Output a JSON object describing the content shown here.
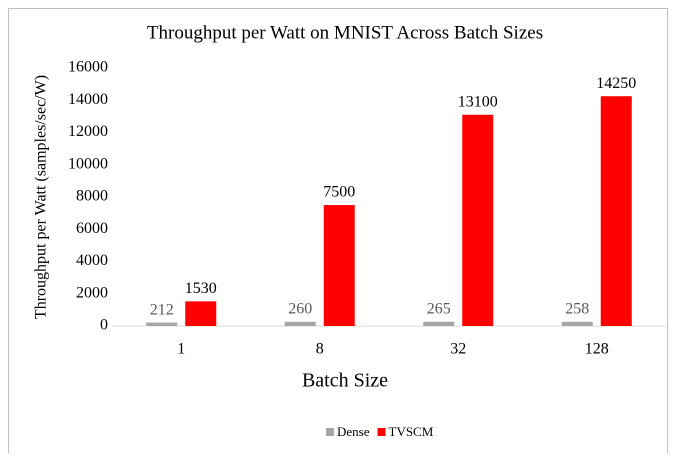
{
  "chart_data": {
    "type": "bar",
    "title": "Throughput per Watt on MNIST Across Batch Sizes",
    "x_label": "Batch Size",
    "y_label": "Throughput per Watt (samples/sec/W)",
    "categories": [
      "1",
      "8",
      "32",
      "128"
    ],
    "series": [
      {
        "name": "Dense",
        "color": "#a6a6a6",
        "label_color": "#595959",
        "values": [
          212,
          260,
          265,
          258
        ]
      },
      {
        "name": "TVSCM",
        "color": "#ff0000",
        "label_color": "#000000",
        "values": [
          1530,
          7500,
          13100,
          14250
        ]
      }
    ],
    "ylim": [
      0,
      16000
    ],
    "yticks": [
      0,
      2000,
      4000,
      6000,
      8000,
      10000,
      12000,
      14000,
      16000
    ],
    "grid": false,
    "legend": "bottom"
  }
}
